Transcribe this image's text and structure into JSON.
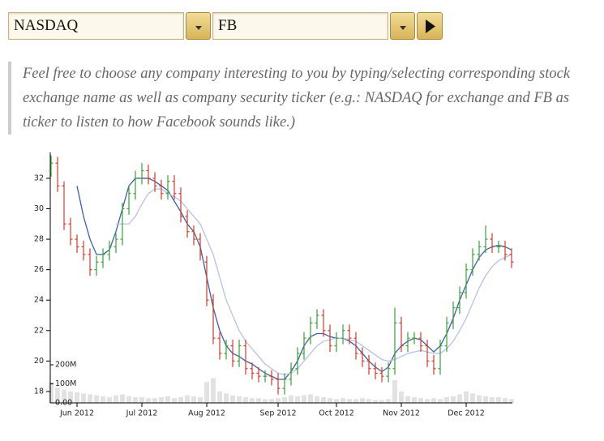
{
  "form": {
    "exchange": "NASDAQ",
    "ticker": "FB"
  },
  "note": "Feel free to choose any company interesting to you by typing/selecting corresponding stock exchange name as well as company security ticker (e.g.: NASDAQ for exchange and FB as ticker to listen to how Facebook sounds like.)",
  "chart_data": {
    "type": "ohlc",
    "categories": [
      null,
      null,
      null,
      null,
      "Jun 2012",
      null,
      null,
      null,
      null,
      null,
      null,
      null,
      null,
      null,
      "Jul 2012",
      null,
      null,
      null,
      null,
      null,
      null,
      null,
      null,
      null,
      "Aug 2012",
      null,
      null,
      null,
      null,
      null,
      null,
      null,
      null,
      null,
      null,
      "Sep 2012",
      null,
      null,
      null,
      null,
      null,
      null,
      null,
      null,
      "Oct 2012",
      null,
      null,
      null,
      null,
      null,
      null,
      null,
      null,
      null,
      "Nov 2012",
      null,
      null,
      null,
      null,
      null,
      null,
      null,
      null,
      null,
      "Dec 2012",
      null,
      null,
      null,
      null,
      null,
      null,
      null
    ],
    "open": [
      32.5,
      33,
      31.5,
      29,
      28,
      27.5,
      27,
      26,
      26.5,
      27,
      27.5,
      28,
      30,
      31,
      32,
      32.5,
      32,
      31.5,
      31,
      31.8,
      31,
      29.5,
      28.5,
      28,
      26.5,
      24,
      21.5,
      20.5,
      21,
      20,
      21,
      19.5,
      19.2,
      19,
      19,
      18.8,
      18.2,
      18.8,
      19.5,
      20.5,
      21.5,
      22.5,
      23,
      22,
      21,
      21.5,
      22,
      21.5,
      20.5,
      20,
      19.5,
      19.2,
      19,
      19.5,
      22.5,
      21,
      21.5,
      21.5,
      21,
      20,
      19.5,
      21,
      22.5,
      23.5,
      24.5,
      26,
      27,
      27.5,
      28,
      27.5,
      27.5,
      27
    ],
    "high": [
      33.5,
      33.4,
      31.8,
      29.4,
      28.3,
      27.9,
      27.4,
      26.9,
      27.4,
      27.9,
      28.4,
      30.4,
      31.4,
      32.5,
      33,
      32.9,
      32.4,
      31.9,
      32.2,
      32.2,
      31.4,
      29.9,
      28.9,
      28.4,
      26.9,
      24.4,
      21.9,
      21.4,
      21.4,
      21.4,
      21.4,
      19.9,
      19.6,
      19.4,
      19.4,
      19.2,
      19.2,
      19.9,
      20.9,
      21.9,
      22.9,
      23.4,
      23.4,
      22.4,
      21.9,
      22.4,
      22.4,
      21.9,
      20.9,
      20.4,
      19.9,
      19.6,
      19.9,
      23.5,
      22.9,
      21.9,
      21.9,
      21.9,
      21.4,
      20.4,
      21.4,
      22.9,
      23.9,
      24.9,
      26.4,
      27.4,
      27.9,
      28.9,
      28.4,
      27.9,
      27.9,
      27.4
    ],
    "low": [
      32.1,
      31.1,
      28.6,
      27.6,
      27.1,
      26.6,
      25.6,
      25.6,
      26.1,
      26.6,
      27.1,
      27.6,
      29.6,
      30.6,
      31.6,
      31.6,
      31.1,
      30.6,
      30.6,
      30.6,
      29.1,
      28.1,
      27.6,
      26.6,
      23.6,
      21.1,
      20.1,
      20.1,
      19.6,
      19.6,
      19.1,
      18.8,
      18.6,
      18.6,
      18.4,
      17.8,
      17.8,
      18.4,
      19.1,
      20.1,
      21.1,
      22.1,
      21.6,
      20.6,
      20.6,
      21.1,
      21.1,
      20.1,
      19.6,
      19.1,
      18.8,
      18.6,
      18.6,
      19.1,
      20.6,
      20.6,
      21.1,
      20.6,
      19.6,
      19.1,
      19.1,
      20.6,
      22.1,
      23.1,
      24.1,
      25.6,
      26.6,
      27.1,
      27.1,
      27.1,
      26.6,
      26.1
    ],
    "close": [
      33,
      31.5,
      29,
      28,
      27.5,
      27,
      26,
      26.5,
      27,
      27.5,
      28,
      30,
      31,
      32,
      32.5,
      32,
      31.5,
      31,
      31.8,
      31,
      29.5,
      28.5,
      28,
      27,
      24,
      21.5,
      20.5,
      21,
      20,
      21,
      19.5,
      19.2,
      19,
      19,
      18.8,
      18.2,
      18.8,
      19.5,
      20.5,
      21.5,
      22.5,
      23,
      22,
      21,
      21.5,
      22,
      21.5,
      20.5,
      20,
      19.5,
      19.2,
      19,
      19.5,
      22.5,
      21,
      21.5,
      21.5,
      21,
      20,
      19.5,
      21,
      22.5,
      23.5,
      24.5,
      26,
      27,
      27.5,
      28,
      27.5,
      27.5,
      27,
      26.5
    ],
    "up_color": "#3aa03a",
    "down_color": "#d43a2a",
    "volume": {
      "axis": "y2",
      "color": "#e2e2e2",
      "values": [
        110000000,
        80000000,
        70000000,
        60000000,
        55000000,
        50000000,
        45000000,
        40000000,
        35000000,
        30000000,
        40000000,
        45000000,
        35000000,
        30000000,
        30000000,
        25000000,
        25000000,
        30000000,
        35000000,
        25000000,
        30000000,
        40000000,
        35000000,
        30000000,
        110000000,
        130000000,
        60000000,
        50000000,
        40000000,
        35000000,
        30000000,
        25000000,
        25000000,
        20000000,
        20000000,
        25000000,
        30000000,
        40000000,
        35000000,
        40000000,
        45000000,
        35000000,
        30000000,
        25000000,
        20000000,
        25000000,
        20000000,
        20000000,
        25000000,
        20000000,
        15000000,
        15000000,
        20000000,
        120000000,
        60000000,
        35000000,
        30000000,
        25000000,
        20000000,
        25000000,
        20000000,
        30000000,
        35000000,
        45000000,
        60000000,
        50000000,
        40000000,
        35000000,
        30000000,
        30000000,
        25000000,
        20000000
      ]
    },
    "overlays": [
      {
        "color": "#3b5ea6",
        "values": [
          null,
          null,
          null,
          null,
          31.5,
          29.5,
          28,
          27,
          27,
          27.3,
          28.5,
          30,
          31.5,
          32,
          32,
          32,
          31.8,
          31.5,
          31.2,
          30.5,
          29.8,
          29,
          28.5,
          27.5,
          25.5,
          23.5,
          22,
          21,
          20.5,
          20.3,
          20,
          19.8,
          19.5,
          19.2,
          19,
          18.8,
          18.8,
          19.3,
          20,
          21,
          21.6,
          21.8,
          21.8,
          21.6,
          21.5,
          21.5,
          21.3,
          21,
          20.5,
          20,
          19.6,
          19.3,
          19.6,
          20.5,
          21,
          21.3,
          21.5,
          21.4,
          21,
          20.6,
          21,
          21.8,
          22.8,
          24,
          25,
          26,
          26.8,
          27.3,
          27.5,
          27.6,
          27.5,
          27.3
        ]
      },
      {
        "color": "#b4c3e8",
        "values": [
          null,
          null,
          null,
          null,
          null,
          null,
          null,
          null,
          null,
          null,
          29,
          29,
          29,
          29.5,
          30.3,
          31,
          31.3,
          31.3,
          31,
          30.8,
          30.5,
          30,
          29.5,
          29,
          28,
          27,
          25.5,
          24,
          23,
          22,
          21.3,
          20.8,
          20.3,
          19.8,
          19.5,
          19.2,
          19.1,
          19.2,
          19.5,
          20,
          20.5,
          21,
          21.3,
          21.4,
          21.5,
          21.5,
          21.4,
          21.3,
          21,
          20.7,
          20.4,
          20.1,
          20,
          20.1,
          20.3,
          20.5,
          20.6,
          20.7,
          20.6,
          20.5,
          20.5,
          20.8,
          21.3,
          22,
          22.8,
          23.8,
          24.8,
          25.6,
          26.2,
          26.6,
          26.8,
          27
        ]
      }
    ],
    "ylim": [
      17.25,
      33.7
    ],
    "yticks": [
      18,
      20,
      22,
      24,
      26,
      28,
      30,
      32
    ],
    "y2lim": [
      0,
      1315000000
    ],
    "y2ticks": [
      {
        "value": 0,
        "label": "0.00"
      },
      {
        "value": 100000000,
        "label": "100M"
      },
      {
        "value": 200000000,
        "label": "200M"
      }
    ]
  }
}
